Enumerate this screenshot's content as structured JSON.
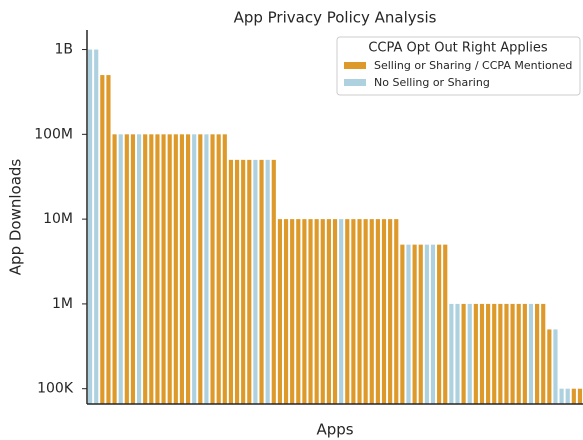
{
  "chart_data": {
    "type": "bar",
    "title": "App Privacy Policy Analysis",
    "x_label": "Apps",
    "y_label": "App Downloads",
    "legend_title": "CCPA Opt Out Right Applies",
    "legend_position": "upper right",
    "log_scale": true,
    "ylim": [
      66000,
      1700000000
    ],
    "yticks": [
      {
        "value": 100000,
        "label": "100K"
      },
      {
        "value": 1000000,
        "label": "1M"
      },
      {
        "value": 10000000,
        "label": "10M"
      },
      {
        "value": 100000000,
        "label": "100M"
      },
      {
        "value": 1000000000,
        "label": "1B"
      }
    ],
    "categories": [
      null,
      null,
      null,
      null,
      null,
      null,
      null,
      null,
      null,
      null,
      null,
      null,
      null,
      null,
      null,
      null,
      null,
      null,
      null,
      null,
      null,
      null,
      null,
      null,
      null,
      null,
      null,
      null,
      null,
      null,
      null,
      null,
      null,
      null,
      null,
      null,
      null,
      null,
      null,
      null,
      null,
      null,
      null,
      null,
      null,
      null,
      null,
      null,
      null,
      null,
      null,
      null,
      null,
      null,
      null,
      null,
      null,
      null,
      null,
      null,
      null,
      null,
      null,
      null,
      null,
      null,
      null,
      null,
      null,
      null,
      null,
      null,
      null,
      null,
      null,
      null,
      null,
      null,
      null,
      null,
      null
    ],
    "series": [
      {
        "name": "Selling or Sharing / CCPA Mentioned",
        "color": "#DD9A2B",
        "values": [
          null,
          null,
          500000000.0,
          500000000.0,
          100000000.0,
          null,
          100000000.0,
          100000000.0,
          null,
          100000000.0,
          100000000.0,
          100000000.0,
          100000000.0,
          100000000.0,
          100000000.0,
          100000000.0,
          100000000.0,
          null,
          100000000.0,
          null,
          100000000.0,
          100000000.0,
          100000000.0,
          50000000.0,
          50000000.0,
          50000000.0,
          50000000.0,
          null,
          50000000.0,
          null,
          50000000.0,
          10000000.0,
          10000000.0,
          10000000.0,
          10000000.0,
          10000000.0,
          10000000.0,
          10000000.0,
          10000000.0,
          10000000.0,
          10000000.0,
          null,
          10000000.0,
          10000000.0,
          10000000.0,
          10000000.0,
          10000000.0,
          10000000.0,
          10000000.0,
          10000000.0,
          10000000.0,
          5000000.0,
          null,
          5000000.0,
          5000000.0,
          null,
          null,
          5000000.0,
          5000000.0,
          null,
          null,
          1000000.0,
          null,
          1000000.0,
          1000000.0,
          1000000.0,
          1000000.0,
          1000000.0,
          1000000.0,
          1000000.0,
          1000000.0,
          1000000.0,
          null,
          1000000.0,
          1000000.0,
          500000.0,
          null,
          null,
          null,
          100000.0,
          100000.0
        ]
      },
      {
        "name": "No Selling or Sharing",
        "color": "#AED1E0",
        "values": [
          1000000000.0,
          1000000000.0,
          null,
          null,
          null,
          100000000.0,
          null,
          null,
          100000000.0,
          null,
          null,
          null,
          null,
          null,
          null,
          null,
          null,
          100000000.0,
          null,
          100000000.0,
          null,
          null,
          null,
          null,
          null,
          null,
          null,
          50000000.0,
          null,
          50000000.0,
          null,
          null,
          null,
          null,
          null,
          null,
          null,
          null,
          null,
          null,
          null,
          10000000.0,
          null,
          null,
          null,
          null,
          null,
          null,
          null,
          null,
          null,
          null,
          5000000.0,
          null,
          null,
          5000000.0,
          5000000.0,
          null,
          null,
          1000000.0,
          1000000.0,
          null,
          1000000.0,
          null,
          null,
          null,
          null,
          null,
          null,
          null,
          null,
          null,
          1000000.0,
          null,
          null,
          null,
          500000.0,
          100000.0,
          100000.0,
          null,
          null
        ]
      }
    ]
  }
}
